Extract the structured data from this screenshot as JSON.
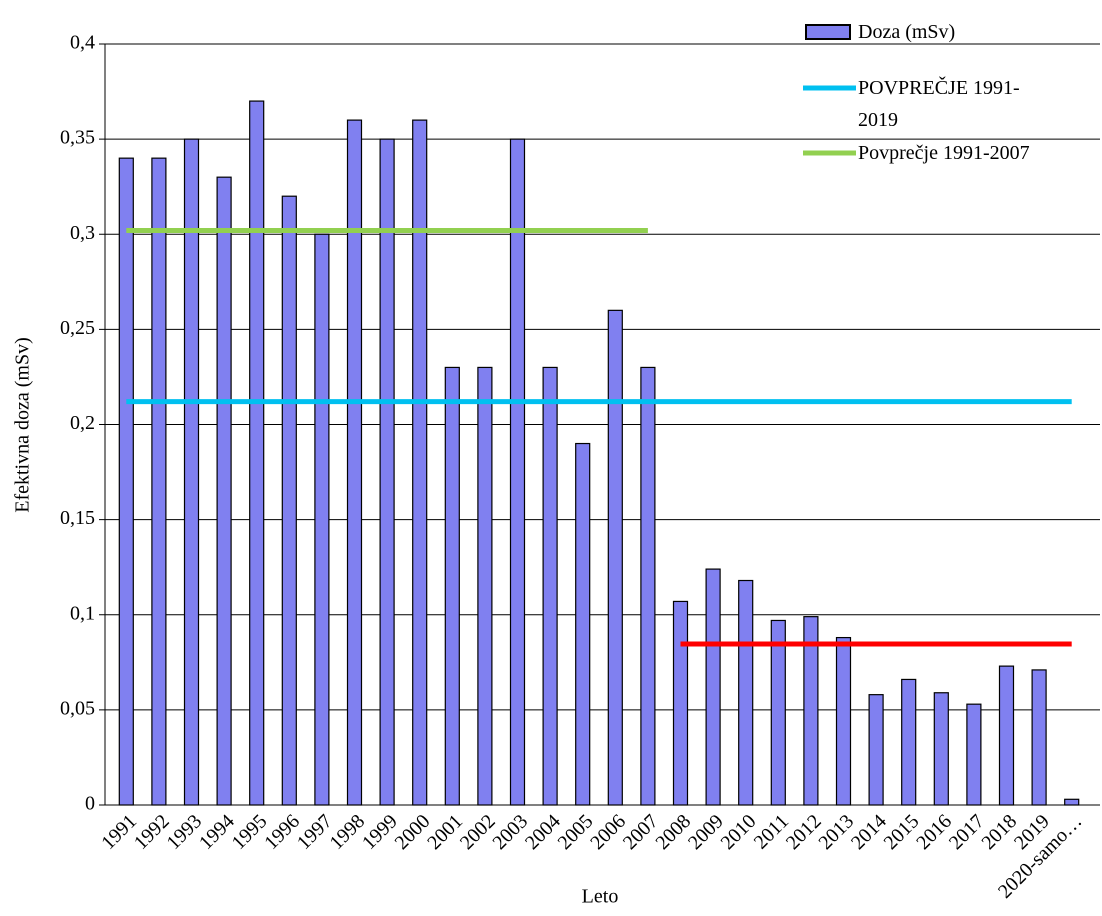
{
  "chart_data": {
    "type": "bar",
    "x_label": "Leto",
    "y_label": "Efektivna doza (mSv)",
    "categories": [
      "1991",
      "1992",
      "1993",
      "1994",
      "1995",
      "1996",
      "1997",
      "1998",
      "1999",
      "2000",
      "2001",
      "2002",
      "2003",
      "2004",
      "2005",
      "2006",
      "2007",
      "2008",
      "2009",
      "2010",
      "2011",
      "2012",
      "2013",
      "2014",
      "2015",
      "2016",
      "2017",
      "2018",
      "2019",
      "2020-samo…"
    ],
    "series": [
      {
        "name": "Doza (mSv)",
        "type": "bar",
        "color": "#8080f0",
        "values": [
          0.34,
          0.34,
          0.35,
          0.33,
          0.37,
          0.32,
          0.3,
          0.36,
          0.35,
          0.36,
          0.23,
          0.23,
          0.35,
          0.23,
          0.19,
          0.26,
          0.23,
          0.107,
          0.124,
          0.118,
          0.097,
          0.099,
          0.088,
          0.058,
          0.066,
          0.059,
          0.053,
          0.073,
          0.071,
          0.003
        ]
      },
      {
        "name": "POVPREČJE 1991-2019",
        "type": "line",
        "color": "#00c0f0",
        "values": [
          0.212,
          0.212,
          0.212,
          0.212,
          0.212,
          0.212,
          0.212,
          0.212,
          0.212,
          0.212,
          0.212,
          0.212,
          0.212,
          0.212,
          0.212,
          0.212,
          0.212,
          0.212,
          0.212,
          0.212,
          0.212,
          0.212,
          0.212,
          0.212,
          0.212,
          0.212,
          0.212,
          0.212,
          0.212,
          0.212
        ]
      },
      {
        "name": "Povprečje 1991-2007",
        "type": "line",
        "color": "#92d050",
        "values": [
          0.302,
          0.302,
          0.302,
          0.302,
          0.302,
          0.302,
          0.302,
          0.302,
          0.302,
          0.302,
          0.302,
          0.302,
          0.302,
          0.302,
          0.302,
          0.302,
          0.302,
          null,
          null,
          null,
          null,
          null,
          null,
          null,
          null,
          null,
          null,
          null,
          null,
          null
        ]
      },
      {
        "type": "line",
        "color": "#ff0000",
        "values": [
          null,
          null,
          null,
          null,
          null,
          null,
          null,
          null,
          null,
          null,
          null,
          null,
          null,
          null,
          null,
          null,
          null,
          0.0846,
          0.0846,
          0.0846,
          0.0846,
          0.0846,
          0.0846,
          0.0846,
          0.0846,
          0.0846,
          0.0846,
          0.0846,
          0.0846,
          0.0846
        ]
      }
    ],
    "ylim": [
      0,
      0.4
    ],
    "yticks": [
      0,
      {
        "value": 0.05,
        "label": "0,05"
      },
      {
        "value": 0.1,
        "label": "0,1"
      },
      {
        "value": 0.15,
        "label": "0,15"
      },
      {
        "value": 0.2,
        "label": "0,2"
      },
      {
        "value": 0.25,
        "label": "0,25"
      },
      {
        "value": 0.3,
        "label": "0,3"
      },
      {
        "value": 0.35,
        "label": "0,35"
      },
      {
        "value": 0.4,
        "label": "0,4"
      }
    ],
    "grid": true,
    "legend": "top-right"
  }
}
